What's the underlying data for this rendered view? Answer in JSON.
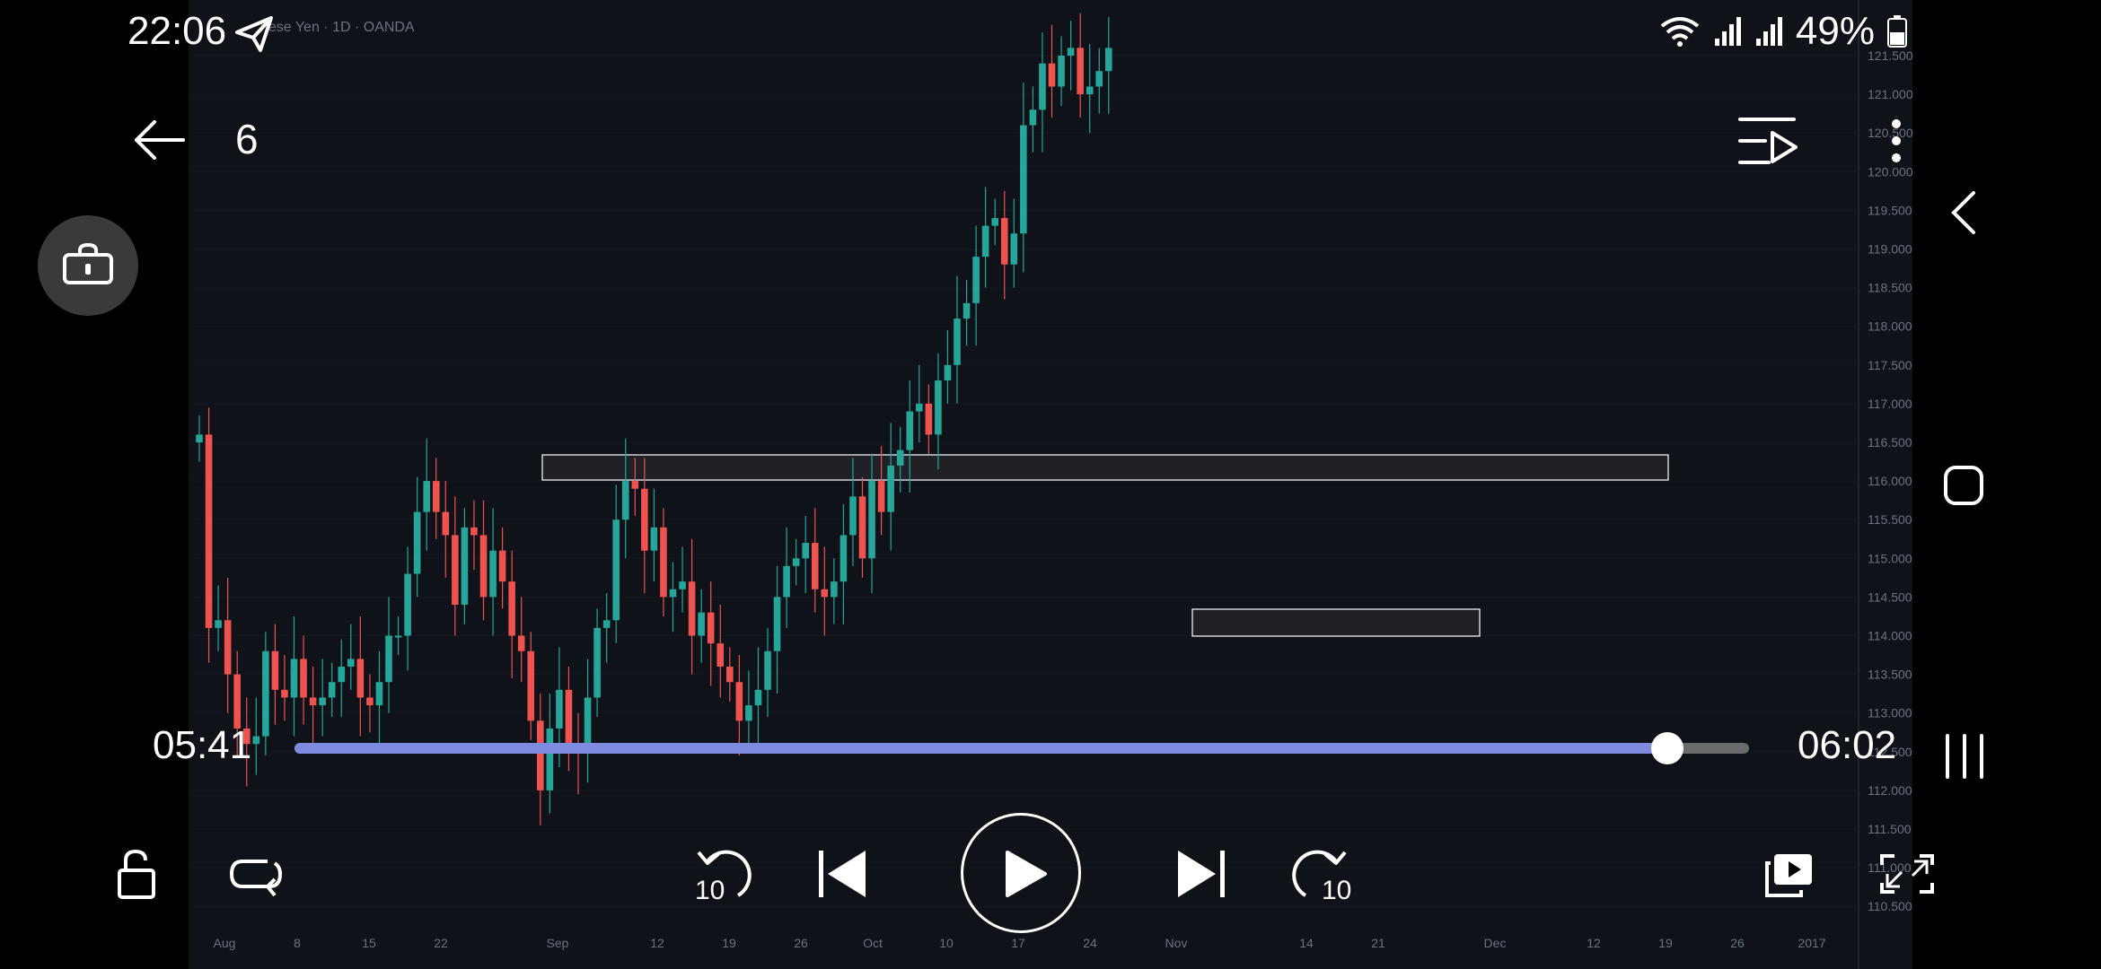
{
  "status_bar": {
    "time": "22:06",
    "battery": "49%"
  },
  "chart_header": {
    "symbol_text": "nese Yen · 1D · OANDA"
  },
  "video": {
    "title": "6",
    "current_time": "05:41",
    "duration": "06:02",
    "progress_fraction": 0.944
  },
  "chart": {
    "price_ticks": [
      "121.500",
      "121.000",
      "120.500",
      "120.000",
      "119.500",
      "119.000",
      "118.500",
      "118.000",
      "117.500",
      "117.000",
      "116.500",
      "116.000",
      "115.500",
      "115.000",
      "114.500",
      "114.000",
      "113.500",
      "113.000",
      "112.500",
      "112.000",
      "111.500",
      "111.000",
      "110.500"
    ],
    "date_ticks": [
      "Aug",
      "8",
      "15",
      "22",
      "Sep",
      "12",
      "19",
      "26",
      "Oct",
      "10",
      "17",
      "24",
      "Nov",
      "14",
      "21",
      "Dec",
      "12",
      "19",
      "26",
      "2017"
    ]
  },
  "controls": {
    "rewind_seconds": "10",
    "forward_seconds": "10"
  },
  "colors": {
    "accent": "#7f8bde",
    "up": "#26a69a",
    "down": "#ef5350",
    "background": "#0f1218"
  },
  "icons": [
    "back-arrow-icon",
    "playlist-play-icon",
    "more-vertical-icon",
    "lock-icon",
    "unlock-icon",
    "repeat-icon",
    "rewind-10-icon",
    "skip-previous-icon",
    "play-icon",
    "skip-next-icon",
    "forward-10-icon",
    "popup-play-icon",
    "fullscreen-icon",
    "wifi-icon",
    "signal-icon",
    "battery-icon",
    "send-icon",
    "nav-back-icon",
    "nav-home-icon",
    "nav-recents-icon"
  ]
}
